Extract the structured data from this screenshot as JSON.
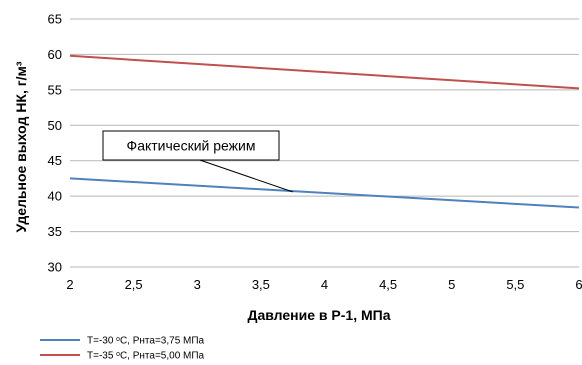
{
  "chart_data": {
    "type": "line",
    "xlabel": "Давление в Р-1, МПа",
    "ylabel": "Удельное выход НК, г/м³",
    "xlim": [
      2,
      6
    ],
    "ylim": [
      30,
      65
    ],
    "x_ticks": [
      "2",
      "2,5",
      "3",
      "3,5",
      "4",
      "4,5",
      "5",
      "5,5",
      "6"
    ],
    "x_tick_values": [
      2,
      2.5,
      3,
      3.5,
      4,
      4.5,
      5,
      5.5,
      6
    ],
    "y_ticks": [
      "30",
      "35",
      "40",
      "45",
      "50",
      "55",
      "60",
      "65"
    ],
    "y_tick_values": [
      30,
      35,
      40,
      45,
      50,
      55,
      60,
      65
    ],
    "grid": "horizontal",
    "legend_position": "bottom-left",
    "series": [
      {
        "name": "Т=-30 ᵒС, Рнта=3,75 МПа",
        "color": "#4f81bd",
        "x": [
          2,
          6
        ],
        "y": [
          42.5,
          38.4
        ]
      },
      {
        "name": "Т=-35 ᵒС, Рнта=5,00 МПа",
        "color": "#c0504d",
        "x": [
          2,
          6
        ],
        "y": [
          59.8,
          55.2
        ]
      }
    ],
    "annotation": {
      "text": "Фактический режим",
      "x": 3.75,
      "y": 40.6
    }
  }
}
